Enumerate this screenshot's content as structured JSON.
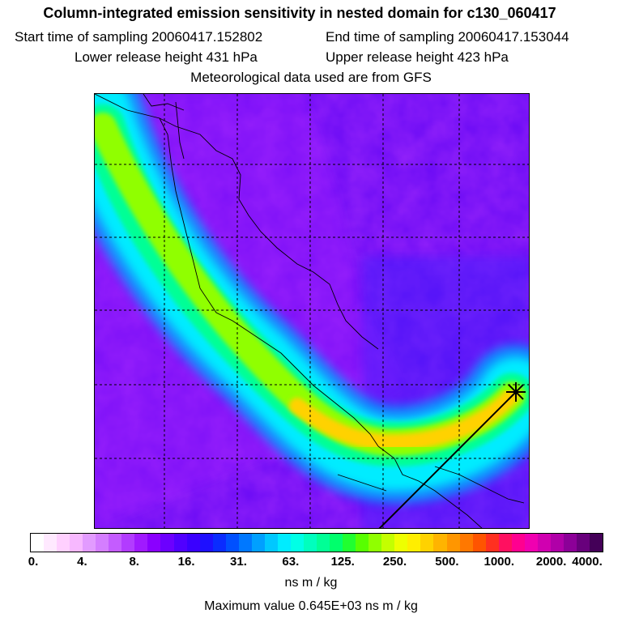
{
  "header": {
    "title": "Column-integrated emission sensitivity in nested domain for c130_060417",
    "start_label": "Start time of sampling 20060417.152802",
    "end_label": "End time of sampling 20060417.153044",
    "lower_label": "Lower release height  431 hPa",
    "upper_label": "Upper release height  423 hPa",
    "met_label": "Meteorological data used are from GFS"
  },
  "colorbar": {
    "tick_labels": [
      "0.",
      "4.",
      "8.",
      "16.",
      "31.",
      "63.",
      "125.",
      "250.",
      "500.",
      "1000.",
      "2000.",
      "4000."
    ],
    "colors": [
      "#ffffff",
      "#ffe9ff",
      "#ffd0ff",
      "#f7b8ff",
      "#e29bff",
      "#d47eff",
      "#c45cff",
      "#b23cff",
      "#a01aff",
      "#8a00ff",
      "#6c00ff",
      "#5000ff",
      "#3a00ff",
      "#1e10ff",
      "#0a2cff",
      "#0050ff",
      "#0078ff",
      "#00a0ff",
      "#00c8ff",
      "#00ecff",
      "#00ffe6",
      "#00ffbe",
      "#00ff96",
      "#00ff6c",
      "#20ff30",
      "#58ff00",
      "#90ff00",
      "#c4ff00",
      "#eeff00",
      "#ffee00",
      "#ffd200",
      "#ffb400",
      "#ff9600",
      "#ff7800",
      "#ff5400",
      "#ff3020",
      "#ff1060",
      "#ff0090",
      "#f000b0",
      "#d000b0",
      "#b000a8",
      "#8c0098",
      "#68007c",
      "#440058"
    ],
    "units": "ns m / kg",
    "max_value_label": "Maximum value  0.645E+03 ns m / kg"
  },
  "map": {
    "background_color": "#6c00ff",
    "plume_color_low": "#00ecff",
    "plume_color_mid": "#90ff00",
    "plume_color_high": "#ffd200",
    "marker": "release-point-star-icon"
  }
}
